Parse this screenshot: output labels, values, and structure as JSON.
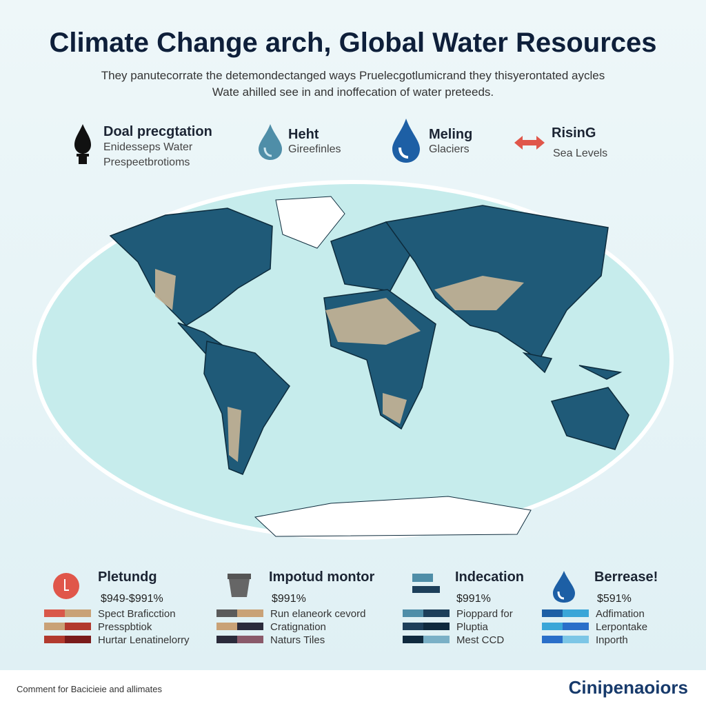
{
  "header": {
    "title": "Climate Change arch, Global Water Resources",
    "subtitle": [
      "They panutecorrate the detemondectanged ways Pruelecgotlumicrand they thisyerontated aycles",
      "Wate ahilled see in and inoffecation of water preteeds."
    ]
  },
  "icons": [
    {
      "title": "Doal precgtation",
      "lines": [
        "Enidesseps Water",
        "Prespeetbrotioms"
      ]
    },
    {
      "title": "Heht",
      "lines": [
        "Gireefinles"
      ]
    },
    {
      "title": "Meling",
      "lines": [
        "Glaciers"
      ]
    },
    {
      "title": "RisinG",
      "lines": [
        "Sea Levels"
      ]
    }
  ],
  "panels": [
    {
      "title": "Pletundg",
      "value": "$949-$991%",
      "items": [
        "Spect Braficction",
        "Presspbtiok",
        "Hurtar Lenatinelorry"
      ]
    },
    {
      "title": "Impotud montor",
      "value": "$991%",
      "items": [
        "Run elaneork cevord",
        "Cratignation",
        "Naturs Tiles"
      ]
    },
    {
      "title": "Indecation",
      "value": "$991%",
      "items": [
        "Pioppard for",
        "Pluptia",
        "Mest CCD"
      ]
    },
    {
      "title": "Berrease!",
      "value": "$591%",
      "items": [
        "Adfimation",
        "Lerpontake",
        "Inporth"
      ]
    }
  ],
  "footer": {
    "note": "Comment for Bacicieie and allimates",
    "brand": "Cinipenaoiors"
  }
}
